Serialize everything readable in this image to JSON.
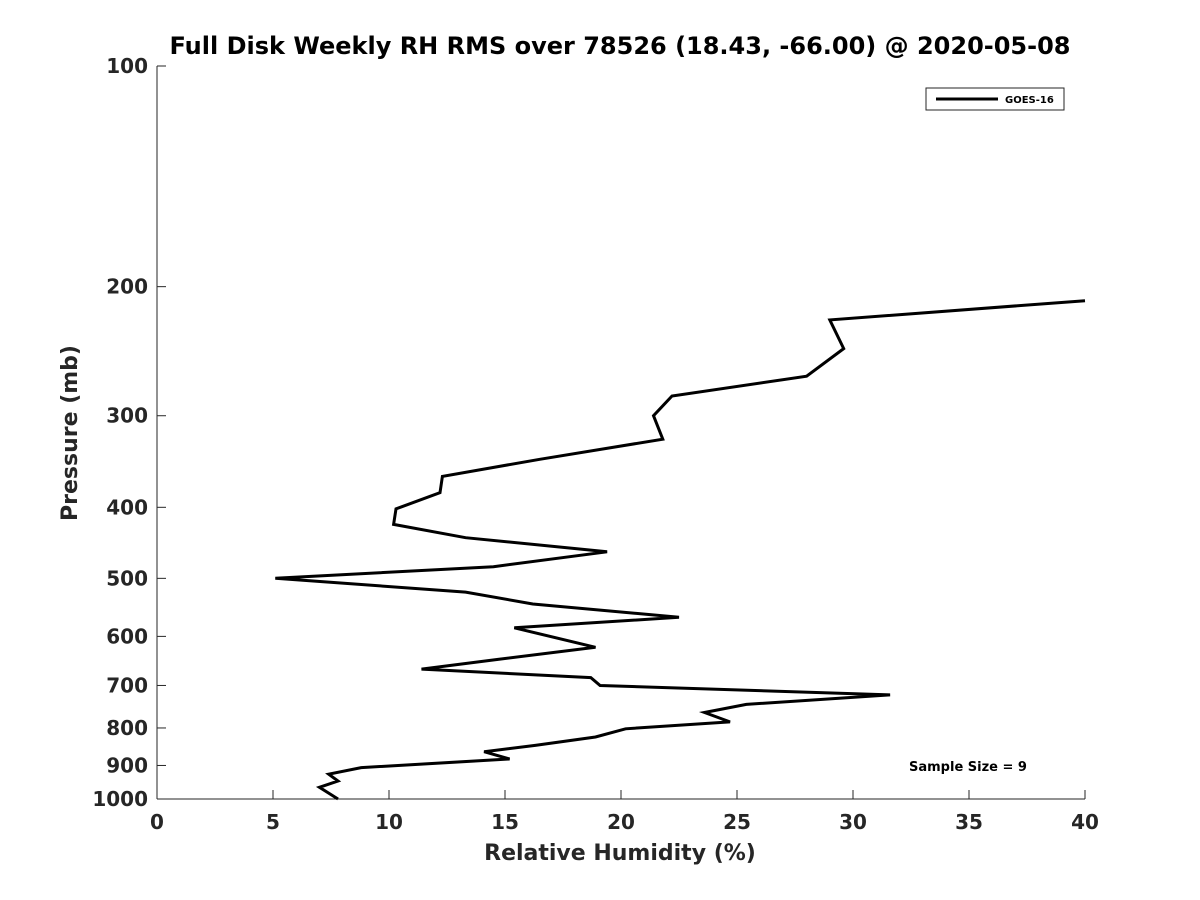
{
  "chart_data": {
    "type": "line",
    "title": "Full Disk Weekly RH RMS over 78526 (18.43, -66.00) @ 2020-05-08",
    "xlabel": "Relative Humidity (%)",
    "ylabel": "Pressure (mb)",
    "xlim": [
      0,
      40
    ],
    "ylim": [
      100,
      1000
    ],
    "yscale": "log",
    "y_reversed": true,
    "x_ticks": [
      0,
      5,
      10,
      15,
      20,
      25,
      30,
      35,
      40
    ],
    "y_ticks": [
      100,
      200,
      300,
      400,
      500,
      600,
      700,
      800,
      900,
      1000
    ],
    "grid": false,
    "legend_placement": "top-right",
    "series": [
      {
        "name": "GOES-16",
        "color": "#000000",
        "points": [
          [
            40.0,
            209
          ],
          [
            29.0,
            222
          ],
          [
            29.6,
            243
          ],
          [
            28.0,
            265
          ],
          [
            22.2,
            282
          ],
          [
            21.4,
            300
          ],
          [
            21.8,
            323
          ],
          [
            16.5,
            344
          ],
          [
            12.3,
            363
          ],
          [
            12.2,
            382
          ],
          [
            10.3,
            402
          ],
          [
            10.2,
            422
          ],
          [
            13.3,
            440
          ],
          [
            19.4,
            460
          ],
          [
            14.5,
            482
          ],
          [
            5.1,
            500
          ],
          [
            13.3,
            522
          ],
          [
            16.2,
            542
          ],
          [
            22.5,
            565
          ],
          [
            15.4,
            584
          ],
          [
            18.9,
            621
          ],
          [
            14.7,
            645
          ],
          [
            11.4,
            665
          ],
          [
            18.7,
            683
          ],
          [
            19.1,
            700
          ],
          [
            31.6,
            721
          ],
          [
            25.4,
            743
          ],
          [
            23.6,
            762
          ],
          [
            24.7,
            785
          ],
          [
            20.2,
            802
          ],
          [
            18.9,
            823
          ],
          [
            16.3,
            845
          ],
          [
            14.1,
            862
          ],
          [
            15.2,
            882
          ],
          [
            8.8,
            906
          ],
          [
            7.4,
            925
          ],
          [
            7.8,
            945
          ],
          [
            7.0,
            964
          ],
          [
            7.8,
            1000
          ]
        ]
      }
    ],
    "annotations": [
      "Sample Size = 9"
    ]
  }
}
